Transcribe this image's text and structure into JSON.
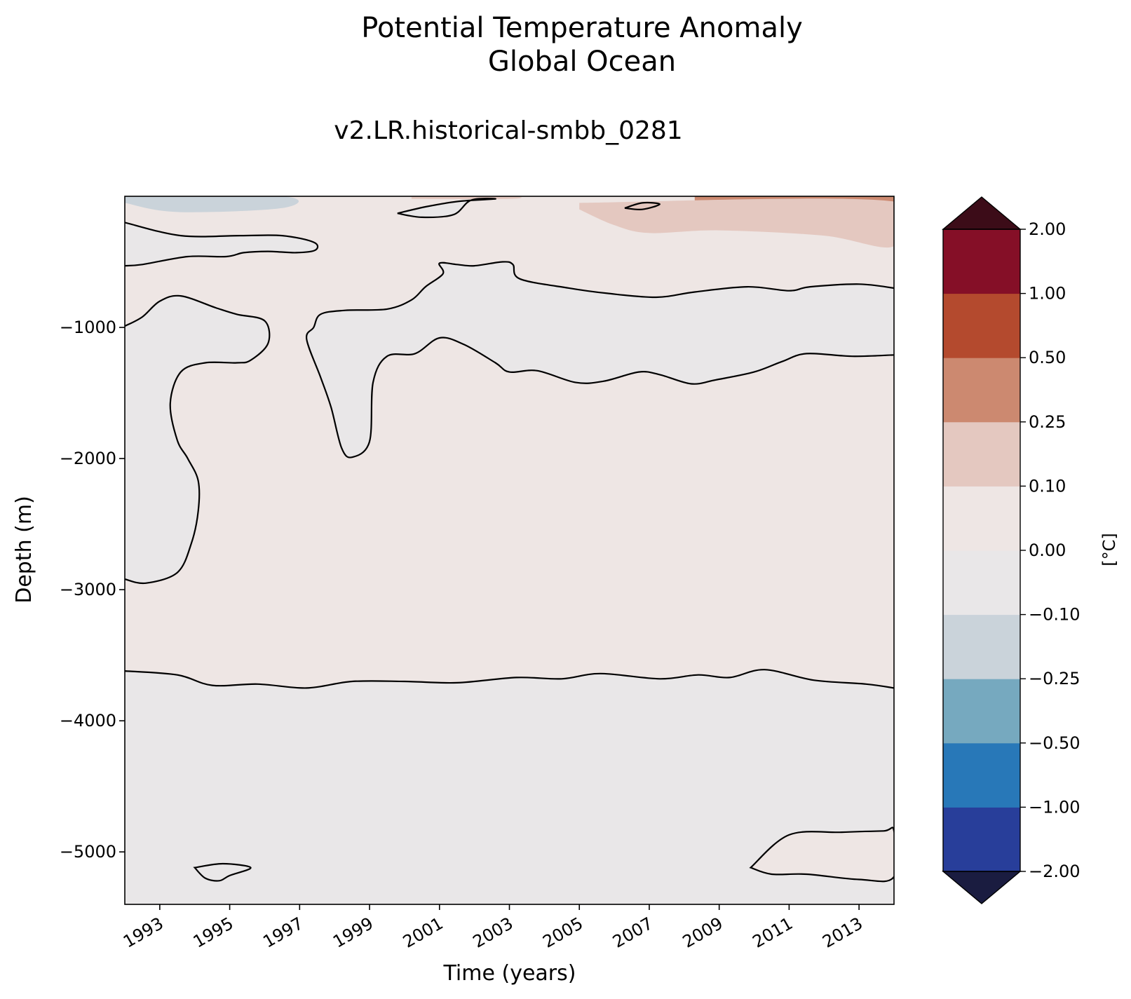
{
  "chart_data": {
    "type": "heatmap",
    "title_line1": "Potential Temperature Anomaly",
    "title_line2": "Global Ocean",
    "subtitle": "v2.LR.historical-smbb_0281",
    "xlabel": "Time (years)",
    "ylabel": "Depth (m)",
    "xlim": [
      1992,
      2014
    ],
    "ylim": [
      -5400,
      0
    ],
    "xticks": [
      "1993",
      "1995",
      "1997",
      "1999",
      "2001",
      "2003",
      "2005",
      "2007",
      "2009",
      "2011",
      "2013"
    ],
    "yticks": [
      {
        "value": -1000,
        "label": "−1000"
      },
      {
        "value": -2000,
        "label": "−2000"
      },
      {
        "value": -3000,
        "label": "−3000"
      },
      {
        "value": -4000,
        "label": "−4000"
      },
      {
        "value": -5000,
        "label": "−5000"
      }
    ],
    "colorbar": {
      "label": "[°C]",
      "levels": [
        {
          "value": -2.0,
          "label": "−2.00"
        },
        {
          "value": -1.0,
          "label": "−1.00"
        },
        {
          "value": -0.5,
          "label": "−0.50"
        },
        {
          "value": -0.25,
          "label": "−0.25"
        },
        {
          "value": -0.1,
          "label": "−0.10"
        },
        {
          "value": 0.0,
          "label": "0.00"
        },
        {
          "value": 0.1,
          "label": "0.10"
        },
        {
          "value": 0.25,
          "label": "0.25"
        },
        {
          "value": 0.5,
          "label": "0.50"
        },
        {
          "value": 1.0,
          "label": "1.00"
        },
        {
          "value": 2.0,
          "label": "2.00"
        }
      ],
      "colors": [
        "#283e9a",
        "#2878b8",
        "#76a9bf",
        "#cad3da",
        "#e9e7e8",
        "#eee6e4",
        "#e4c8c0",
        "#cc8970",
        "#b44a2e",
        "#850f27"
      ],
      "under_color": "#1a1c40",
      "over_color": "#3c0c18"
    },
    "contour_levels": [
      0.0
    ],
    "background_color": "#e9e7e8",
    "warm_color": "#eee6e4",
    "contours": [
      {
        "name": "upper-warm-band-top",
        "points": [
          [
            1992,
            -200
          ],
          [
            1993.6,
            -300
          ],
          [
            1995.3,
            -300
          ],
          [
            1996.5,
            -300
          ],
          [
            1997.4,
            -350
          ],
          [
            1997.45,
            -410
          ],
          [
            1996.9,
            -430
          ],
          [
            1996.1,
            -420
          ],
          [
            1995.4,
            -430
          ],
          [
            1994.9,
            -460
          ],
          [
            1993.8,
            -460
          ],
          [
            1992.5,
            -520
          ],
          [
            1992,
            -530
          ]
        ]
      },
      {
        "name": "warm-core-boundary",
        "points": [
          [
            1992,
            -990
          ],
          [
            1992.5,
            -920
          ],
          [
            1993,
            -800
          ],
          [
            1993.6,
            -760
          ],
          [
            1994.6,
            -850
          ],
          [
            1995.2,
            -900
          ],
          [
            1996,
            -950
          ],
          [
            1996.1,
            -1120
          ],
          [
            1995.6,
            -1250
          ],
          [
            1995.2,
            -1270
          ],
          [
            1994.3,
            -1270
          ],
          [
            1993.6,
            -1340
          ],
          [
            1993.3,
            -1580
          ],
          [
            1993.5,
            -1860
          ],
          [
            1993.8,
            -2000
          ],
          [
            1994.1,
            -2170
          ],
          [
            1994.1,
            -2400
          ],
          [
            1993.9,
            -2650
          ],
          [
            1993.5,
            -2870
          ],
          [
            1992.6,
            -2950
          ],
          [
            1992,
            -2920
          ]
        ]
      },
      {
        "name": "upper-cold-band-boundary",
        "points": [
          [
            2014,
            -700
          ],
          [
            2013,
            -670
          ],
          [
            2011.6,
            -690
          ],
          [
            2011,
            -720
          ],
          [
            2009.8,
            -690
          ],
          [
            2008.3,
            -730
          ],
          [
            2007.2,
            -770
          ],
          [
            2005.8,
            -740
          ],
          [
            2004.7,
            -700
          ],
          [
            2003.3,
            -630
          ],
          [
            2003.1,
            -520
          ],
          [
            2002.8,
            -500
          ],
          [
            2002,
            -530
          ],
          [
            2001.5,
            -520
          ],
          [
            2001,
            -510
          ],
          [
            2001.1,
            -590
          ],
          [
            2000.6,
            -690
          ],
          [
            2000.2,
            -790
          ],
          [
            1999.5,
            -860
          ],
          [
            1998.3,
            -870
          ],
          [
            1997.6,
            -900
          ],
          [
            1997.4,
            -1000
          ],
          [
            1997.2,
            -1090
          ],
          [
            1997.6,
            -1380
          ],
          [
            1997.9,
            -1610
          ],
          [
            1998.2,
            -1920
          ],
          [
            1998.5,
            -1990
          ],
          [
            1999,
            -1870
          ],
          [
            1999.1,
            -1420
          ],
          [
            1999.5,
            -1220
          ],
          [
            2000.3,
            -1200
          ],
          [
            2001,
            -1080
          ],
          [
            2001.7,
            -1130
          ],
          [
            2002.6,
            -1270
          ],
          [
            2003,
            -1340
          ],
          [
            2003.8,
            -1330
          ],
          [
            2004.9,
            -1420
          ],
          [
            2005.7,
            -1410
          ],
          [
            2006.7,
            -1340
          ],
          [
            2007.3,
            -1360
          ],
          [
            2008.2,
            -1430
          ],
          [
            2008.9,
            -1400
          ],
          [
            2010,
            -1340
          ],
          [
            2010.8,
            -1260
          ],
          [
            2011.5,
            -1200
          ],
          [
            2012.8,
            -1220
          ],
          [
            2014,
            -1210
          ]
        ]
      },
      {
        "name": "deep-boundary",
        "points": [
          [
            1992,
            -3620
          ],
          [
            1993.5,
            -3650
          ],
          [
            1994.5,
            -3730
          ],
          [
            1995.8,
            -3720
          ],
          [
            1997.2,
            -3750
          ],
          [
            1998.5,
            -3700
          ],
          [
            2000,
            -3700
          ],
          [
            2001.5,
            -3710
          ],
          [
            2003.2,
            -3670
          ],
          [
            2004.5,
            -3680
          ],
          [
            2005.6,
            -3640
          ],
          [
            2007.3,
            -3680
          ],
          [
            2008.4,
            -3650
          ],
          [
            2009.3,
            -3670
          ],
          [
            2010.3,
            -3610
          ],
          [
            2011.7,
            -3690
          ],
          [
            2013.2,
            -3720
          ],
          [
            2014,
            -3750
          ]
        ]
      },
      {
        "name": "bottom-right-warm-patch",
        "points": [
          [
            2009.9,
            -5120
          ],
          [
            2011,
            -4870
          ],
          [
            2012.5,
            -4850
          ],
          [
            2013.7,
            -4840
          ],
          [
            2014,
            -4840
          ],
          [
            2014,
            -5190
          ],
          [
            2013,
            -5210
          ],
          [
            2011.5,
            -5170
          ],
          [
            2010.5,
            -5170
          ],
          [
            2009.9,
            -5120
          ]
        ]
      },
      {
        "name": "bottom-left-cold-patch",
        "points": [
          [
            1994,
            -5120
          ],
          [
            1994.8,
            -5090
          ],
          [
            1995.6,
            -5120
          ],
          [
            1995,
            -5180
          ],
          [
            1994.7,
            -5220
          ],
          [
            1994.3,
            -5200
          ],
          [
            1994,
            -5120
          ]
        ]
      },
      {
        "name": "near-surface-patch-1",
        "points": [
          [
            1999.8,
            -130
          ],
          [
            2000.6,
            -80
          ],
          [
            2001.5,
            -40
          ],
          [
            2002.6,
            -20
          ],
          [
            2001.9,
            -30
          ],
          [
            2001.4,
            -140
          ],
          [
            2000.5,
            -160
          ],
          [
            1999.8,
            -130
          ]
        ]
      },
      {
        "name": "near-surface-patch-2",
        "points": [
          [
            2006.3,
            -90
          ],
          [
            2006.8,
            -50
          ],
          [
            2007.3,
            -60
          ],
          [
            2006.8,
            -100
          ],
          [
            2006.3,
            -90
          ]
        ]
      }
    ],
    "surface_features": [
      {
        "name": "surface-warm-streak-1",
        "bin": 6,
        "points": [
          [
            2000.2,
            0
          ],
          [
            2003,
            0
          ],
          [
            2003,
            -20
          ],
          [
            2000.2,
            -20
          ]
        ]
      },
      {
        "name": "surface-warm-streak-2",
        "bin": 7,
        "points": [
          [
            2008.3,
            0
          ],
          [
            2014,
            0
          ],
          [
            2014,
            -50
          ],
          [
            2008.3,
            -50
          ]
        ]
      },
      {
        "name": "surface-warm-zone",
        "bin": 6,
        "points": [
          [
            2005,
            -50
          ],
          [
            2014,
            -40
          ],
          [
            2014,
            -380
          ],
          [
            2012,
            -300
          ],
          [
            2009,
            -260
          ],
          [
            2007,
            -280
          ],
          [
            2006,
            -220
          ],
          [
            2005,
            -100
          ]
        ]
      },
      {
        "name": "surface-cold-streak",
        "bin": 3,
        "points": [
          [
            1992,
            0
          ],
          [
            1996.5,
            0
          ],
          [
            1996.5,
            -90
          ],
          [
            1993.5,
            -120
          ],
          [
            1992,
            -50
          ]
        ]
      }
    ]
  }
}
